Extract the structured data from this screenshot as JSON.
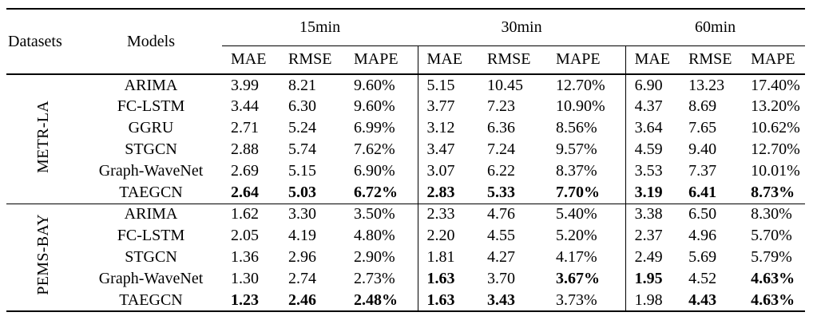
{
  "colors": {
    "ink": "#000000",
    "background": "#ffffff"
  },
  "table": {
    "col_headers": {
      "datasets": "Datasets",
      "models": "Models"
    },
    "horizons": [
      "15min",
      "30min",
      "60min"
    ],
    "metrics": [
      "MAE",
      "RMSE",
      "MAPE"
    ],
    "sections": [
      {
        "dataset": "METR-LA",
        "rows": [
          {
            "model": "ARIMA",
            "values": [
              "3.99",
              "8.21",
              "9.60%",
              "5.15",
              "10.45",
              "12.70%",
              "6.90",
              "13.23",
              "17.40%"
            ],
            "bold": [
              0,
              0,
              0,
              0,
              0,
              0,
              0,
              0,
              0
            ]
          },
          {
            "model": "FC-LSTM",
            "values": [
              "3.44",
              "6.30",
              "9.60%",
              "3.77",
              "7.23",
              "10.90%",
              "4.37",
              "8.69",
              "13.20%"
            ],
            "bold": [
              0,
              0,
              0,
              0,
              0,
              0,
              0,
              0,
              0
            ]
          },
          {
            "model": "GGRU",
            "values": [
              "2.71",
              "5.24",
              "6.99%",
              "3.12",
              "6.36",
              "8.56%",
              "3.64",
              "7.65",
              "10.62%"
            ],
            "bold": [
              0,
              0,
              0,
              0,
              0,
              0,
              0,
              0,
              0
            ]
          },
          {
            "model": "STGCN",
            "values": [
              "2.88",
              "5.74",
              "7.62%",
              "3.47",
              "7.24",
              "9.57%",
              "4.59",
              "9.40",
              "12.70%"
            ],
            "bold": [
              0,
              0,
              0,
              0,
              0,
              0,
              0,
              0,
              0
            ]
          },
          {
            "model": "Graph-WaveNet",
            "values": [
              "2.69",
              "5.15",
              "6.90%",
              "3.07",
              "6.22",
              "8.37%",
              "3.53",
              "7.37",
              "10.01%"
            ],
            "bold": [
              0,
              0,
              0,
              0,
              0,
              0,
              0,
              0,
              0
            ]
          },
          {
            "model": "TAEGCN",
            "values": [
              "2.64",
              "5.03",
              "6.72%",
              "2.83",
              "5.33",
              "7.70%",
              "3.19",
              "6.41",
              "8.73%"
            ],
            "bold": [
              1,
              1,
              1,
              1,
              1,
              1,
              1,
              1,
              1
            ]
          }
        ]
      },
      {
        "dataset": "PEMS-BAY",
        "rows": [
          {
            "model": "ARIMA",
            "values": [
              "1.62",
              "3.30",
              "3.50%",
              "2.33",
              "4.76",
              "5.40%",
              "3.38",
              "6.50",
              "8.30%"
            ],
            "bold": [
              0,
              0,
              0,
              0,
              0,
              0,
              0,
              0,
              0
            ]
          },
          {
            "model": "FC-LSTM",
            "values": [
              "2.05",
              "4.19",
              "4.80%",
              "2.20",
              "4.55",
              "5.20%",
              "2.37",
              "4.96",
              "5.70%"
            ],
            "bold": [
              0,
              0,
              0,
              0,
              0,
              0,
              0,
              0,
              0
            ]
          },
          {
            "model": "STGCN",
            "values": [
              "1.36",
              "2.96",
              "2.90%",
              "1.81",
              "4.27",
              "4.17%",
              "2.49",
              "5.69",
              "5.79%"
            ],
            "bold": [
              0,
              0,
              0,
              0,
              0,
              0,
              0,
              0,
              0
            ]
          },
          {
            "model": "Graph-WaveNet",
            "values": [
              "1.30",
              "2.74",
              "2.73%",
              "1.63",
              "3.70",
              "3.67%",
              "1.95",
              "4.52",
              "4.63%"
            ],
            "bold": [
              0,
              0,
              0,
              1,
              0,
              1,
              1,
              0,
              1
            ]
          },
          {
            "model": "TAEGCN",
            "values": [
              "1.23",
              "2.46",
              "2.48%",
              "1.63",
              "3.43",
              "3.73%",
              "1.98",
              "4.43",
              "4.63%"
            ],
            "bold": [
              1,
              1,
              1,
              1,
              1,
              0,
              0,
              1,
              1
            ]
          }
        ]
      }
    ]
  }
}
